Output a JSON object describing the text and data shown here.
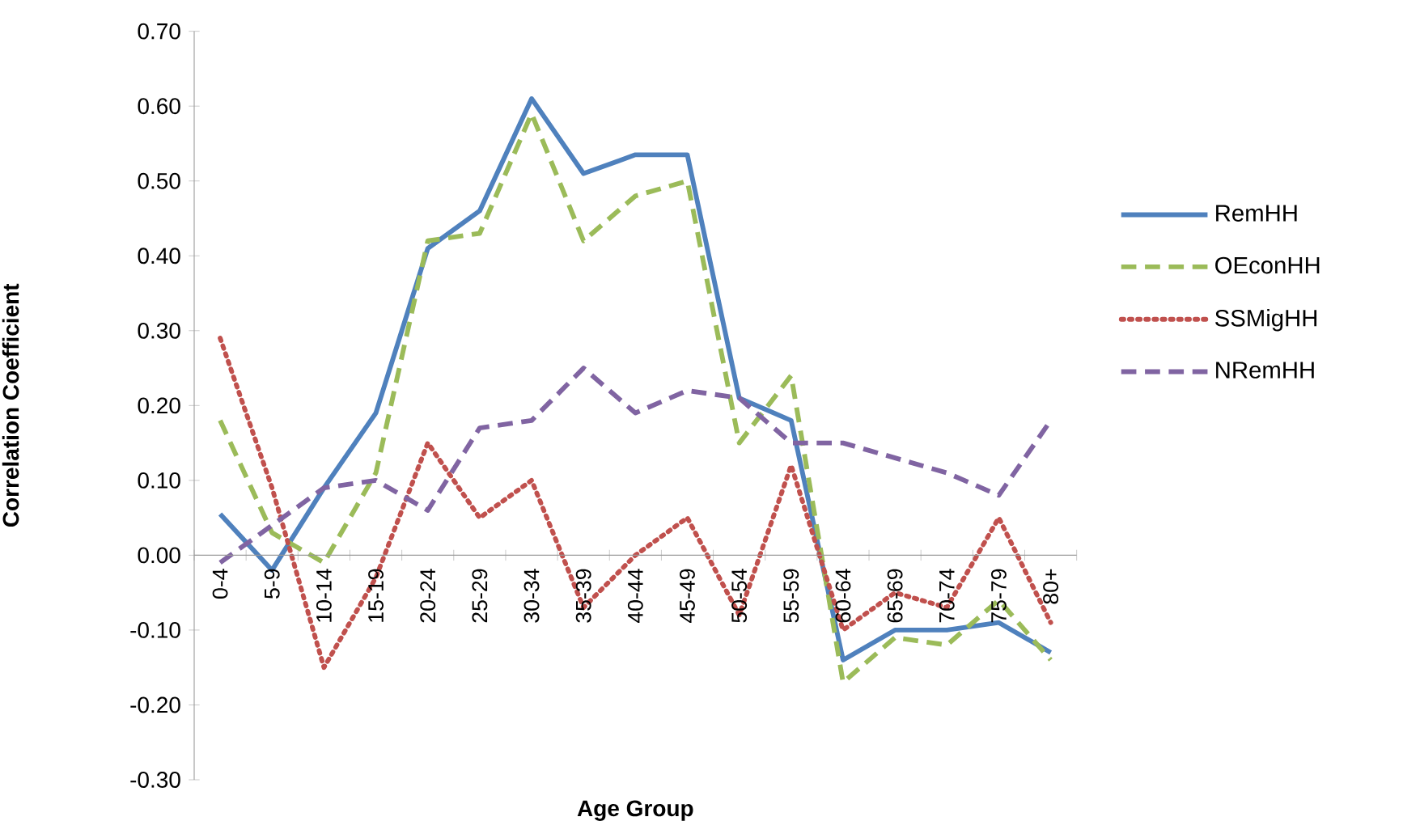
{
  "chart_data": {
    "type": "line",
    "xlabel": "Age Group",
    "ylabel": "Correlation Coefficient",
    "categories": [
      "0-4",
      "5-9",
      "10-14",
      "15-19",
      "20-24",
      "25-29",
      "30-34",
      "35-39",
      "40-44",
      "45-49",
      "50-54",
      "55-59",
      "60-64",
      "65-69",
      "70-74",
      "75-79",
      "80+"
    ],
    "series": [
      {
        "name": "RemHH",
        "color": "#4f81bd",
        "line_style": "solid",
        "values": [
          0.055,
          -0.02,
          0.09,
          0.19,
          0.41,
          0.46,
          0.61,
          0.51,
          0.535,
          0.535,
          0.21,
          0.18,
          -0.14,
          -0.1,
          -0.1,
          -0.09,
          -0.13
        ]
      },
      {
        "name": "OEconHH",
        "color": "#9bbb59",
        "line_style": "dashed",
        "values": [
          0.18,
          0.03,
          -0.01,
          0.11,
          0.42,
          0.43,
          0.59,
          0.42,
          0.48,
          0.5,
          0.15,
          0.24,
          -0.17,
          -0.11,
          -0.12,
          -0.06,
          -0.14
        ]
      },
      {
        "name": "SSMigHH",
        "color": "#c0504d",
        "line_style": "dotted",
        "values": [
          0.29,
          0.09,
          -0.15,
          -0.03,
          0.15,
          0.05,
          0.1,
          -0.07,
          0.0,
          0.05,
          -0.08,
          0.12,
          -0.1,
          -0.05,
          -0.07,
          0.05,
          -0.09
        ]
      },
      {
        "name": "NRemHH",
        "color": "#8064a2",
        "line_style": "dashed",
        "values": [
          -0.01,
          0.04,
          0.09,
          0.1,
          0.06,
          0.17,
          0.18,
          0.25,
          0.19,
          0.22,
          0.21,
          0.15,
          0.15,
          0.13,
          0.11,
          0.08,
          0.18
        ]
      }
    ],
    "ylim": [
      -0.3,
      0.7
    ],
    "yticks": [
      {
        "value": -0.3,
        "label": "-0.30"
      },
      {
        "value": -0.2,
        "label": "-0.20"
      },
      {
        "value": -0.1,
        "label": "-0.10"
      },
      {
        "value": 0,
        "label": "0.00"
      },
      {
        "value": 0.1,
        "label": "0.10"
      },
      {
        "value": 0.2,
        "label": "0.20"
      },
      {
        "value": 0.3,
        "label": "0.30"
      },
      {
        "value": 0.4,
        "label": "0.40"
      },
      {
        "value": 0.5,
        "label": "0.50"
      },
      {
        "value": 0.6,
        "label": "0.60"
      },
      {
        "value": 0.7,
        "label": "0.70"
      }
    ],
    "legend": "right",
    "grid": false,
    "marker": "none"
  }
}
